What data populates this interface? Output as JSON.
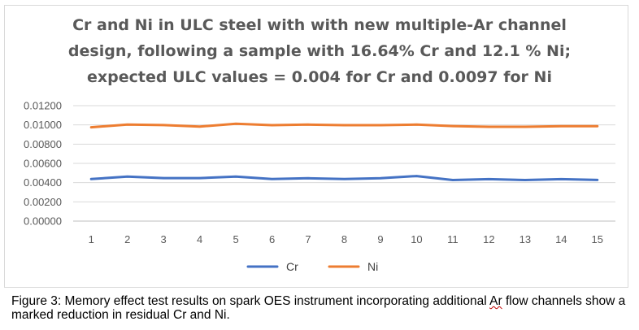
{
  "chart_data": {
    "type": "line",
    "title_lines": [
      "Cr and Ni in ULC steel with with new multiple-Ar channel",
      "design, following a sample with 16.64% Cr and 12.1 % Ni;",
      "expected ULC values = 0.004 for Cr and 0.0097 for Ni"
    ],
    "categories": [
      "1",
      "2",
      "3",
      "4",
      "5",
      "6",
      "7",
      "8",
      "9",
      "10",
      "11",
      "12",
      "13",
      "14",
      "15"
    ],
    "y_ticks": [
      "0.00000",
      "0.00200",
      "0.00400",
      "0.00600",
      "0.00800",
      "0.01000",
      "0.01200"
    ],
    "ylim": [
      0,
      0.012
    ],
    "grid": true,
    "legend_position": "bottom",
    "series": [
      {
        "name": "Cr",
        "color": "#4472c4",
        "values": [
          0.00437,
          0.00463,
          0.00447,
          0.00447,
          0.00462,
          0.00437,
          0.00445,
          0.00437,
          0.00446,
          0.00468,
          0.00427,
          0.00436,
          0.00427,
          0.00436,
          0.00428
        ]
      },
      {
        "name": "Ni",
        "color": "#ed7d31",
        "values": [
          0.00975,
          0.01004,
          0.00998,
          0.00982,
          0.01012,
          0.00997,
          0.01003,
          0.00997,
          0.00997,
          0.01003,
          0.00988,
          0.0098,
          0.0098,
          0.00987,
          0.00987
        ]
      }
    ]
  },
  "caption": {
    "before": "Figure 3: Memory effect test results on spark OES instrument incorporating additional ",
    "squiggle_word": "Ar",
    "after": " flow channels show a marked reduction in residual Cr and Ni."
  }
}
